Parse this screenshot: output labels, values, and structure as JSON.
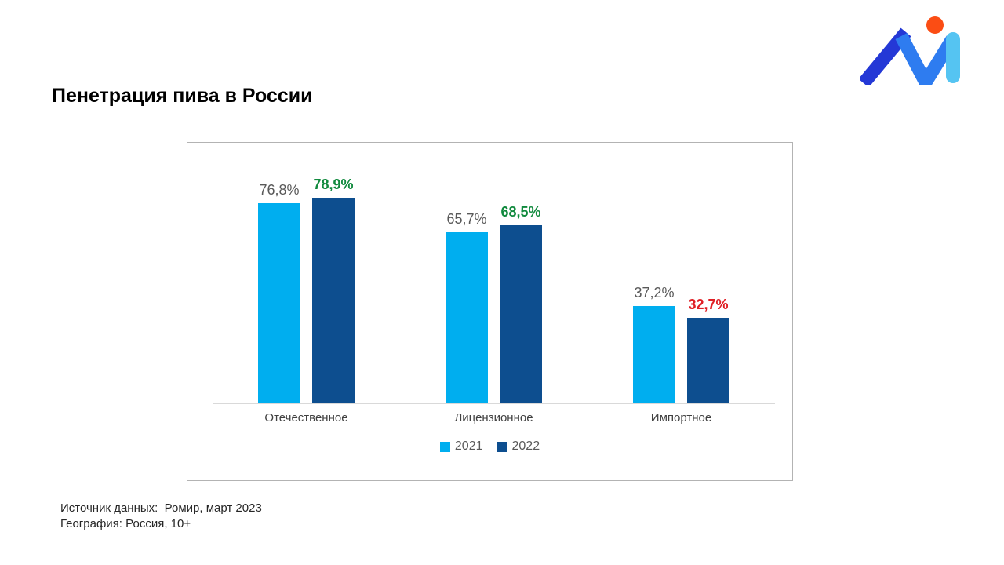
{
  "title": {
    "text": "Пенетрация пива в России"
  },
  "logo": {
    "colors": {
      "dark_blue": "#2438D6",
      "bright_blue": "#2E7CF0",
      "sky_blue": "#55C4F2",
      "orange": "#FB4D14"
    }
  },
  "chart_data": {
    "type": "bar",
    "title": "Пенетрация пива в России",
    "categories": [
      "Отечественное",
      "Лицензионное",
      "Импортное"
    ],
    "series": [
      {
        "name": "2021",
        "color": "#00AEEF",
        "values": [
          76.8,
          65.7,
          37.2
        ],
        "labels": [
          "76,8%",
          "65,7%",
          "37,2%"
        ],
        "label_colors": [
          "#595959",
          "#595959",
          "#595959"
        ],
        "label_bold": false
      },
      {
        "name": "2022",
        "color": "#0D4E8F",
        "values": [
          78.9,
          68.5,
          32.7
        ],
        "labels": [
          "78,9%",
          "68,5%",
          "32,7%"
        ],
        "label_colors": [
          "#118A3E",
          "#118A3E",
          "#E01F25"
        ],
        "label_bold": true
      }
    ],
    "xlabel": "",
    "ylabel": "",
    "ylim": [
      0,
      100
    ],
    "grid": false,
    "legend_position": "bottom",
    "value_suffix": "%",
    "decimal_separator": ","
  },
  "footer": {
    "line1": "Источник данных:  Ромир, март 2023",
    "line2": "География: Россия, 10+"
  }
}
